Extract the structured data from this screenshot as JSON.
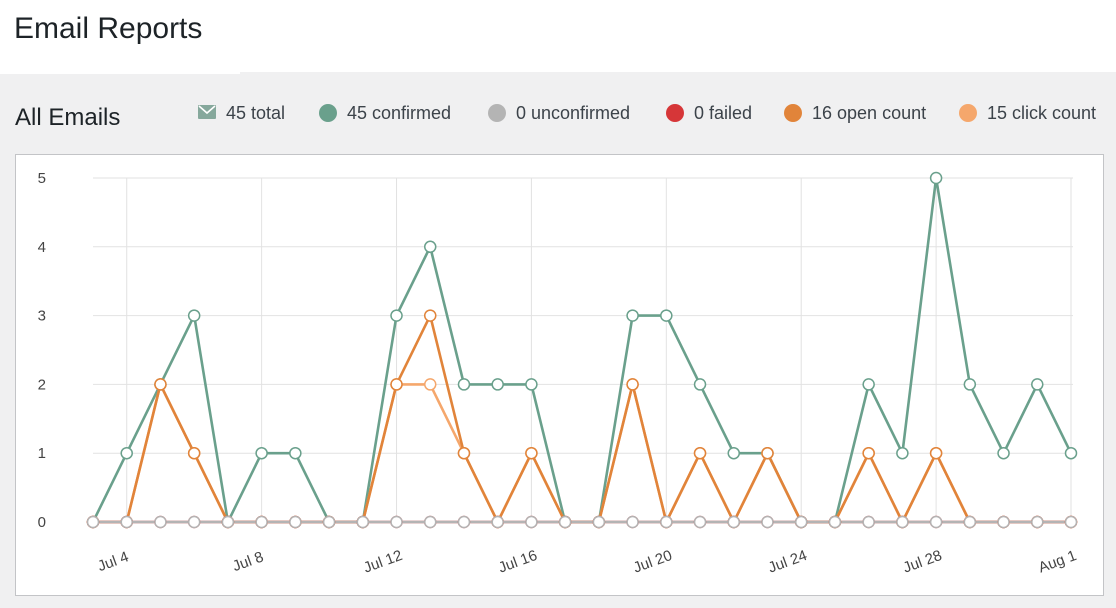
{
  "page": {
    "title": "Email Reports"
  },
  "report": {
    "section_title": "All Emails"
  },
  "legend": {
    "items": [
      {
        "key": "total",
        "label": "45 total",
        "icon": "envelope-icon",
        "color": "#86a89c"
      },
      {
        "key": "confirmed",
        "label": "45 confirmed",
        "icon": "dot",
        "color": "#6aa08c"
      },
      {
        "key": "unconfirmed",
        "label": "0 unconfirmed",
        "icon": "dot",
        "color": "#b4b4b4"
      },
      {
        "key": "failed",
        "label": "0 failed",
        "icon": "dot",
        "color": "#d63638"
      },
      {
        "key": "open",
        "label": "16 open count",
        "icon": "dot",
        "color": "#e1843a"
      },
      {
        "key": "click",
        "label": "15 click count",
        "icon": "dot",
        "color": "#f5a76c"
      }
    ]
  },
  "chart_data": {
    "type": "line",
    "x": [
      "Jul 3",
      "Jul 4",
      "Jul 5",
      "Jul 6",
      "Jul 7",
      "Jul 8",
      "Jul 9",
      "Jul 10",
      "Jul 11",
      "Jul 12",
      "Jul 13",
      "Jul 14",
      "Jul 15",
      "Jul 16",
      "Jul 17",
      "Jul 18",
      "Jul 19",
      "Jul 20",
      "Jul 21",
      "Jul 22",
      "Jul 23",
      "Jul 24",
      "Jul 25",
      "Jul 26",
      "Jul 27",
      "Jul 28",
      "Jul 29",
      "Jul 30",
      "Jul 31",
      "Aug 1"
    ],
    "x_tick_labels": [
      "Jul 4",
      "Jul 8",
      "Jul 12",
      "Jul 16",
      "Jul 20",
      "Jul 24",
      "Jul 28",
      "Aug 1"
    ],
    "y_ticks": [
      0,
      1,
      2,
      3,
      4,
      5
    ],
    "ylim": [
      0,
      5
    ],
    "grid": true,
    "legend_position": "top-right",
    "series": [
      {
        "key": "confirmed",
        "color": "#6aa08c",
        "values": [
          0,
          1,
          2,
          3,
          0,
          1,
          1,
          0,
          0,
          3,
          4,
          2,
          2,
          2,
          0,
          0,
          3,
          3,
          2,
          1,
          1,
          0,
          0,
          2,
          1,
          5,
          2,
          1,
          2,
          1
        ]
      },
      {
        "key": "click",
        "color": "#f5a76c",
        "values": [
          0,
          0,
          2,
          1,
          0,
          0,
          0,
          0,
          0,
          2,
          2,
          1,
          0,
          1,
          0,
          0,
          2,
          0,
          1,
          0,
          1,
          0,
          0,
          1,
          0,
          1,
          0,
          0,
          0,
          0
        ]
      },
      {
        "key": "open",
        "color": "#e1843a",
        "values": [
          0,
          0,
          2,
          1,
          0,
          0,
          0,
          0,
          0,
          2,
          3,
          1,
          0,
          1,
          0,
          0,
          2,
          0,
          1,
          0,
          1,
          0,
          0,
          1,
          0,
          1,
          0,
          0,
          0,
          0
        ]
      },
      {
        "key": "failed",
        "color": "#d63638",
        "values": [
          0,
          0,
          0,
          0,
          0,
          0,
          0,
          0,
          0,
          0,
          0,
          0,
          0,
          0,
          0,
          0,
          0,
          0,
          0,
          0,
          0,
          0,
          0,
          0,
          0,
          0,
          0,
          0,
          0,
          0
        ]
      },
      {
        "key": "unconfirmed",
        "color": "#b4b4b4",
        "values": [
          0,
          0,
          0,
          0,
          0,
          0,
          0,
          0,
          0,
          0,
          0,
          0,
          0,
          0,
          0,
          0,
          0,
          0,
          0,
          0,
          0,
          0,
          0,
          0,
          0,
          0,
          0,
          0,
          0,
          0
        ]
      }
    ]
  }
}
